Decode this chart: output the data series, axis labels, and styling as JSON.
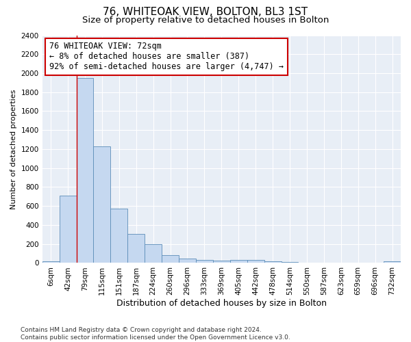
{
  "title": "76, WHITEOAK VIEW, BOLTON, BL3 1ST",
  "subtitle": "Size of property relative to detached houses in Bolton",
  "xlabel": "Distribution of detached houses by size in Bolton",
  "ylabel": "Number of detached properties",
  "categories": [
    "6sqm",
    "42sqm",
    "79sqm",
    "115sqm",
    "151sqm",
    "187sqm",
    "224sqm",
    "260sqm",
    "296sqm",
    "333sqm",
    "369sqm",
    "405sqm",
    "442sqm",
    "478sqm",
    "514sqm",
    "550sqm",
    "587sqm",
    "623sqm",
    "659sqm",
    "696sqm",
    "732sqm"
  ],
  "values": [
    18,
    710,
    1950,
    1230,
    575,
    305,
    200,
    85,
    50,
    35,
    25,
    35,
    30,
    15,
    8,
    3,
    3,
    2,
    2,
    2,
    15
  ],
  "bar_color": "#c5d8f0",
  "bar_edge_color": "#5b8db8",
  "property_line_x": 1.5,
  "annotation_line1": "76 WHITEOAK VIEW: 72sqm",
  "annotation_line2": "← 8% of detached houses are smaller (387)",
  "annotation_line3": "92% of semi-detached houses are larger (4,747) →",
  "annotation_box_color": "#ffffff",
  "annotation_box_edge": "#cc0000",
  "vline_color": "#cc0000",
  "ylim": [
    0,
    2400
  ],
  "yticks": [
    0,
    200,
    400,
    600,
    800,
    1000,
    1200,
    1400,
    1600,
    1800,
    2000,
    2200,
    2400
  ],
  "footnote": "Contains HM Land Registry data © Crown copyright and database right 2024.\nContains public sector information licensed under the Open Government Licence v3.0.",
  "fig_background_color": "#ffffff",
  "plot_background_color": "#e8eef6",
  "grid_color": "#ffffff",
  "title_fontsize": 11,
  "subtitle_fontsize": 9.5,
  "xlabel_fontsize": 9,
  "ylabel_fontsize": 8,
  "tick_fontsize": 7.5,
  "annotation_fontsize": 8.5,
  "footnote_fontsize": 6.5
}
